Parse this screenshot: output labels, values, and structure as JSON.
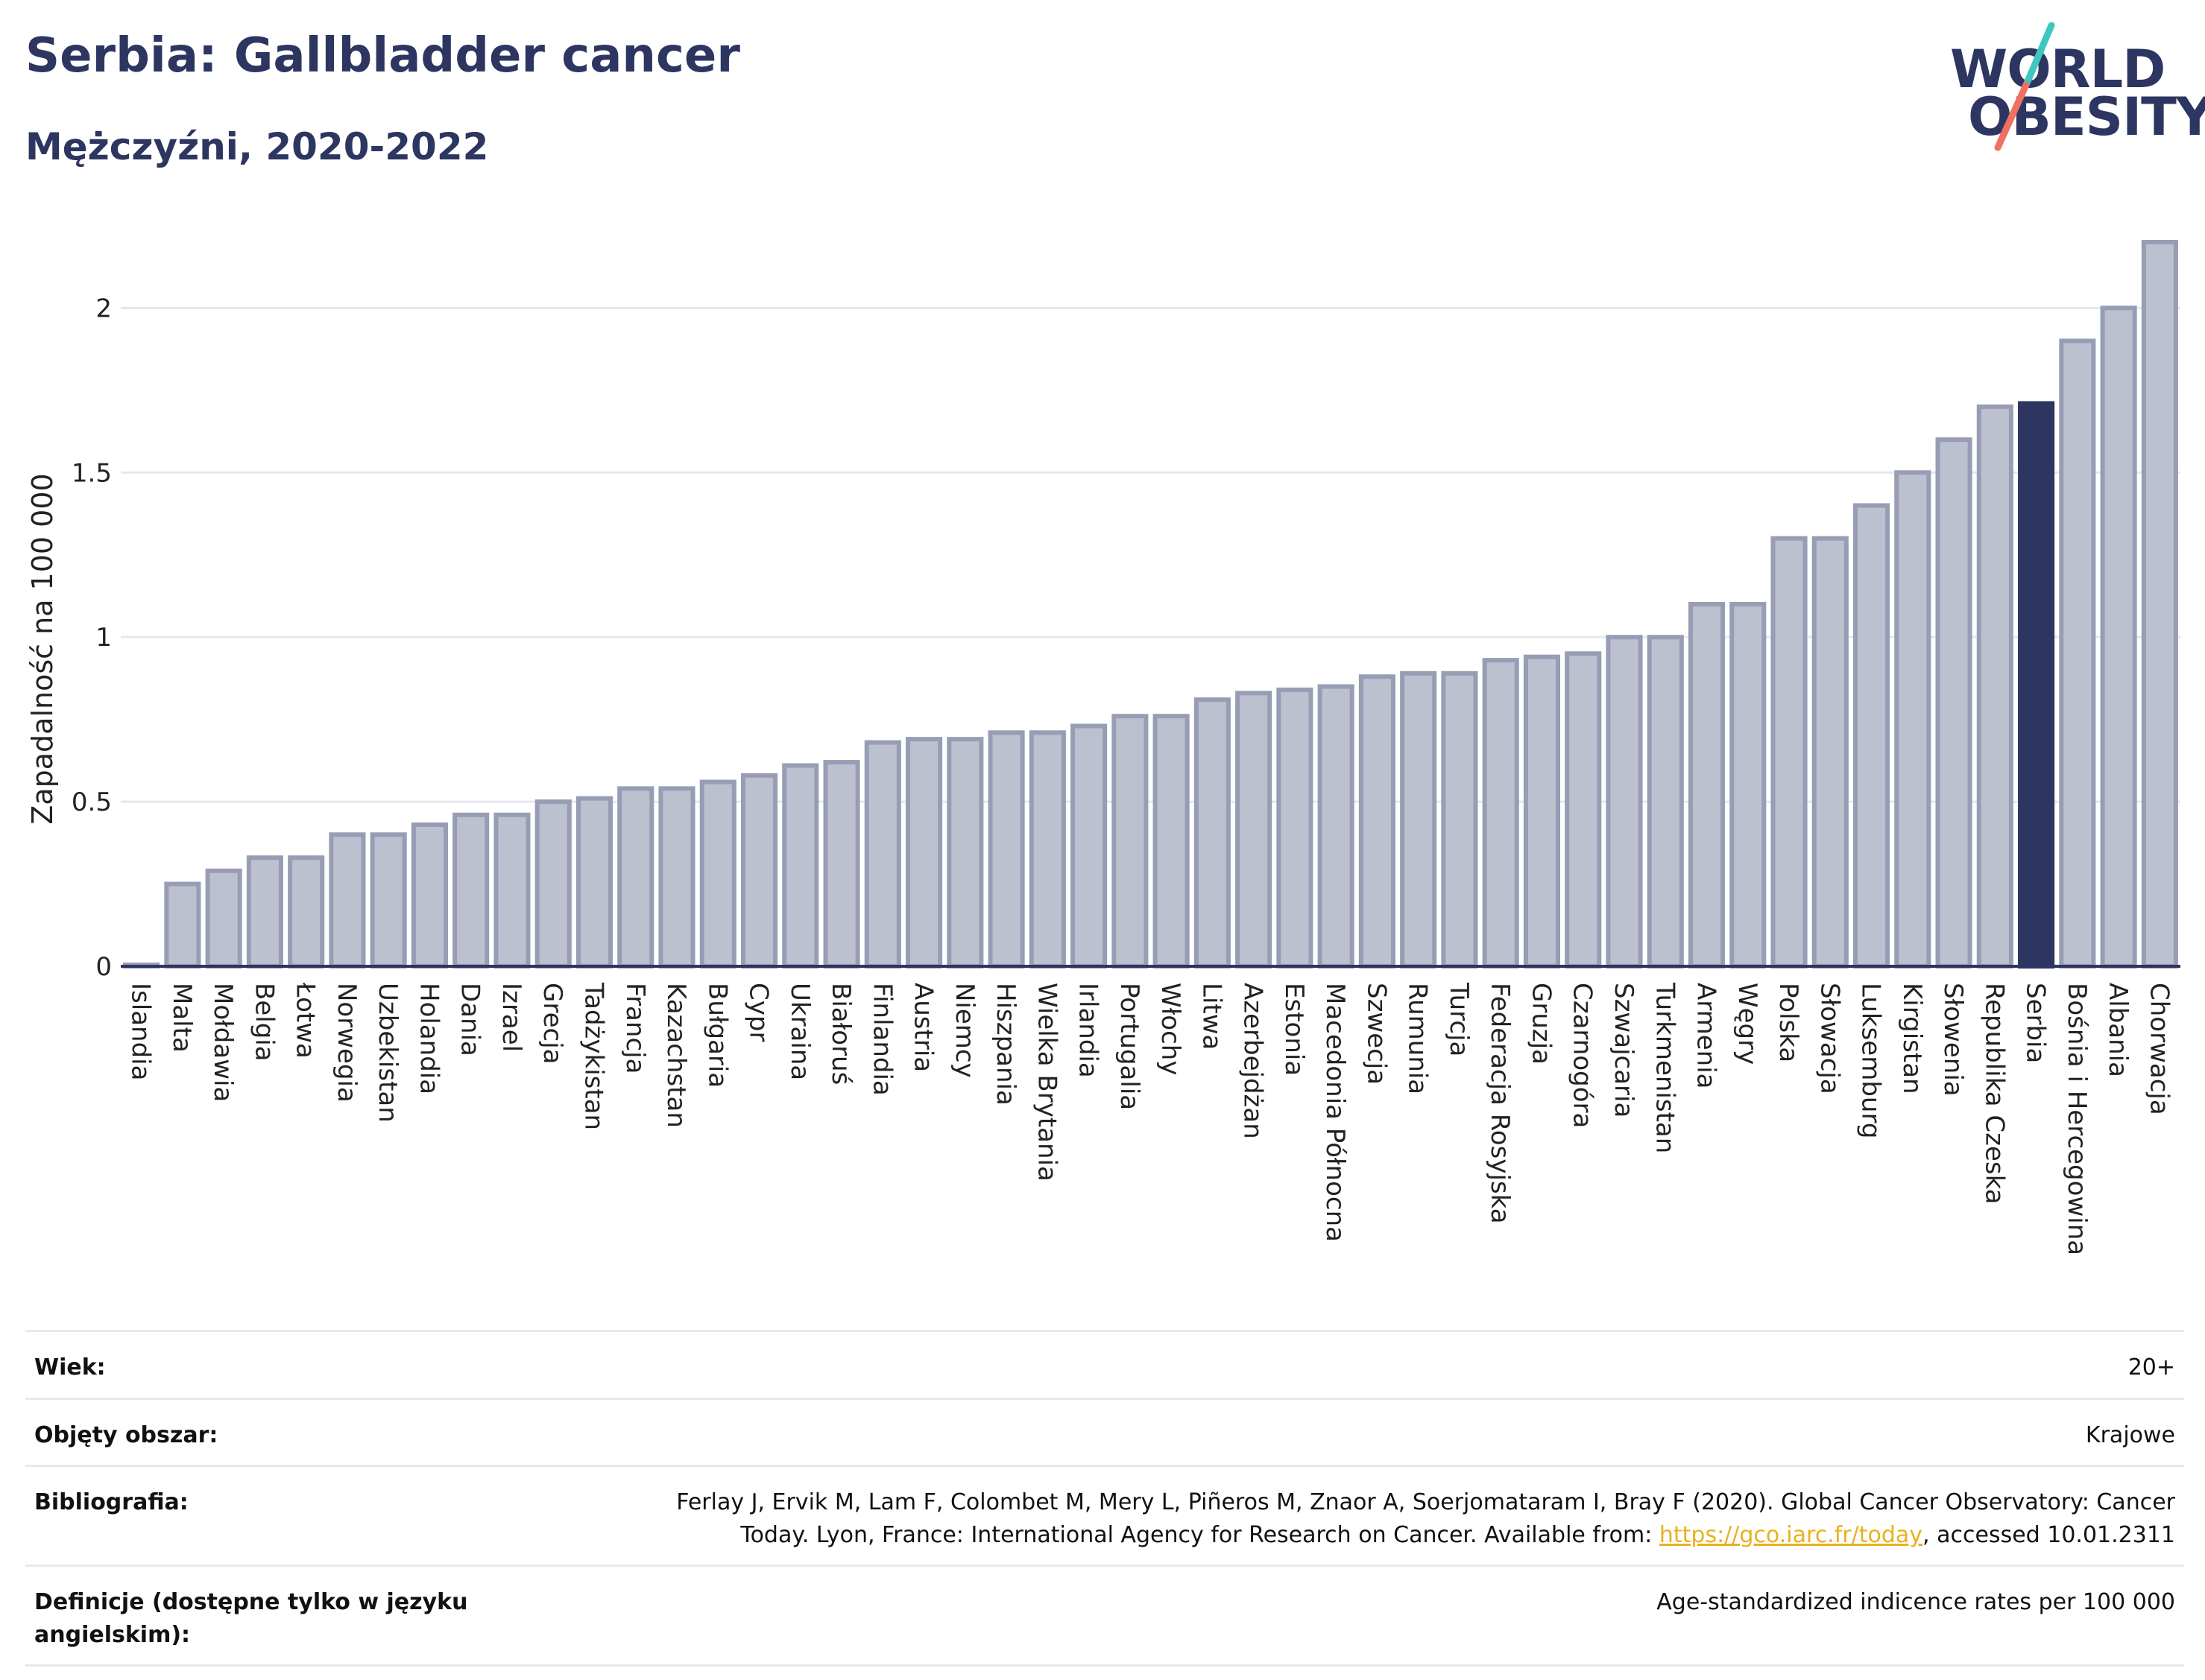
{
  "title": "Serbia: Gallbladder cancer",
  "subtitle": "Mężczyźni, 2020-2022",
  "logo": {
    "line1": "WORLD",
    "line2": "OBESITY",
    "colors": {
      "text": "#2d3561",
      "slash_top": "#3ec7c1",
      "slash_bottom": "#f07062"
    }
  },
  "colors": {
    "bar": "#bcc0cf",
    "bar_stroke": "#979db4",
    "highlight": "#2d3561",
    "grid": "#e6e7ee",
    "axis": "#2d3561"
  },
  "chart_data": {
    "type": "bar",
    "ylabel": "Zapadalność na 100 000",
    "xlabel": "",
    "ylim": [
      0,
      2.2
    ],
    "yticks": [
      0,
      0.5,
      1,
      1.5,
      2
    ],
    "ytick_labels": [
      "0",
      "0.5",
      "1",
      "1.5",
      "2"
    ],
    "grid": true,
    "highlight": "Serbia",
    "categories": [
      "Islandia",
      "Malta",
      "Mołdawia",
      "Belgia",
      "Łotwa",
      "Norwegia",
      "Uzbekistan",
      "Holandia",
      "Dania",
      "Izrael",
      "Grecja",
      "Tadżykistan",
      "Francja",
      "Kazachstan",
      "Bułgaria",
      "Cypr",
      "Ukraina",
      "Białoruś",
      "Finlandia",
      "Austria",
      "Niemcy",
      "Hiszpania",
      "Wielka Brytania",
      "Irlandia",
      "Portugalia",
      "Włochy",
      "Litwa",
      "Azerbejdżan",
      "Estonia",
      "Macedonia Północna",
      "Szwecja",
      "Rumunia",
      "Turcja",
      "Federacja Rosyjska",
      "Gruzja",
      "Czarnogóra",
      "Szwajcaria",
      "Turkmenistan",
      "Armenia",
      "Węgry",
      "Polska",
      "Słowacja",
      "Luksemburg",
      "Kirgistan",
      "Słowenia",
      "Republika Czeska",
      "Serbia",
      "Bośnia i Hercegowina",
      "Albania",
      "Chorwacja"
    ],
    "values": [
      0.0,
      0.25,
      0.29,
      0.33,
      0.33,
      0.4,
      0.4,
      0.43,
      0.46,
      0.46,
      0.5,
      0.51,
      0.54,
      0.54,
      0.56,
      0.58,
      0.61,
      0.62,
      0.68,
      0.69,
      0.69,
      0.71,
      0.71,
      0.73,
      0.76,
      0.76,
      0.81,
      0.83,
      0.84,
      0.85,
      0.88,
      0.89,
      0.89,
      0.93,
      0.94,
      0.95,
      1.0,
      1.0,
      1.1,
      1.1,
      1.3,
      1.3,
      1.4,
      1.5,
      1.6,
      1.7,
      1.71,
      1.9,
      2.0,
      2.2
    ]
  },
  "meta": {
    "age_label": "Wiek:",
    "age_value": "20+",
    "area_label": "Objęty obszar:",
    "area_value": "Krajowe",
    "bib_label": "Bibliografia:",
    "bib_line1": "Ferlay J, Ervik M, Lam F, Colombet M, Mery L, Piñeros M, Znaor A, Soerjomataram I, Bray F (2020). Global Cancer Observatory: Cancer",
    "bib_line2_pre": "Today. Lyon, France: International Agency for Research on Cancer. Available from: ",
    "bib_link": "https://gco.iarc.fr/today",
    "bib_line2_post": ", accessed 10.01.2311",
    "def_label": "Definicje (dostępne tylko w języku angielskim):",
    "def_value": "Age-standardized indicence rates per 100 000"
  }
}
